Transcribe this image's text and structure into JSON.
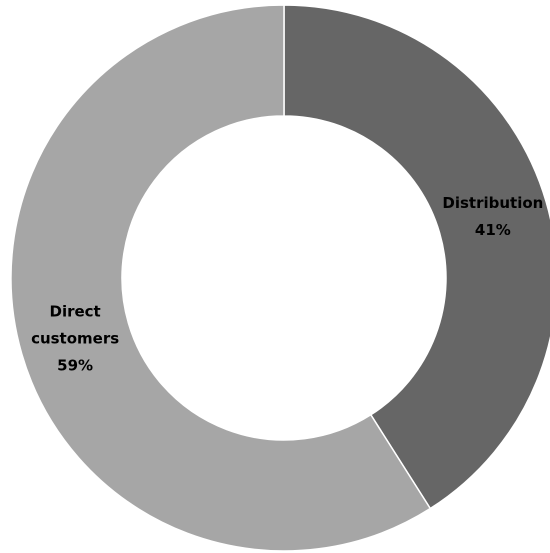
{
  "chart_data": {
    "type": "donut",
    "categories": [
      "Distribution",
      "Direct customers"
    ],
    "values": [
      41,
      59
    ],
    "value_labels": [
      "41%",
      "59%"
    ],
    "colors": [
      "#666666",
      "#a6a6a6"
    ]
  }
}
